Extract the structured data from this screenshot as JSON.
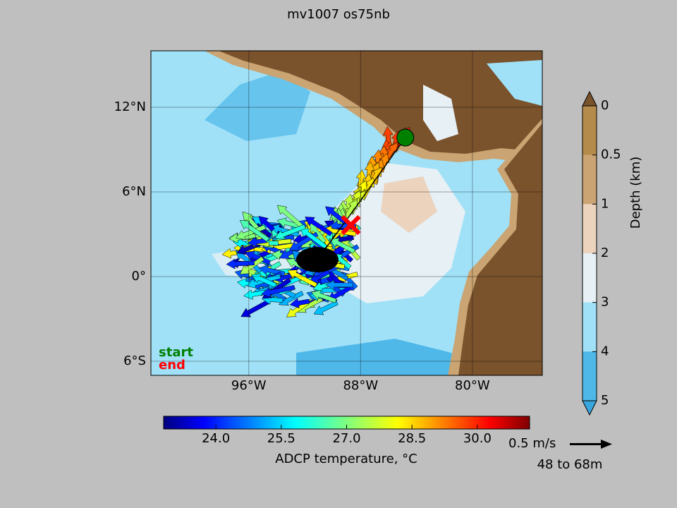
{
  "map": {
    "title": "mv1007 os75nb",
    "lon_range": [
      -103,
      -75
    ],
    "lat_range": [
      -7,
      16
    ],
    "lon_ticks": [
      {
        "value": -96,
        "label": "96°W"
      },
      {
        "value": -88,
        "label": "88°W"
      },
      {
        "value": -80,
        "label": "80°W"
      }
    ],
    "lat_ticks": [
      {
        "value": 12,
        "label": "12°N"
      },
      {
        "value": 6,
        "label": "6°N"
      },
      {
        "value": 0,
        "label": "0°"
      },
      {
        "value": -6,
        "label": "6°S"
      }
    ],
    "depth_colorbar": {
      "label": "Depth (km)",
      "ticks": [
        0,
        {
          "value": 0.5,
          "label": "0.5"
        },
        1,
        2,
        3,
        4,
        5
      ],
      "colors": [
        "#b58b4c",
        "#caa472",
        "#ecd3bd",
        "#e6f0f5",
        "#a0e1f8",
        "#4fb8e8"
      ],
      "over_color": "#7a522c",
      "under_color": "#3aa6de"
    },
    "temp_colorbar": {
      "label": "ADCP temperature, °C",
      "range": [
        22.8,
        31.2
      ],
      "ticks": [
        {
          "value": 24,
          "label": "24.0"
        },
        {
          "value": 25.5,
          "label": "25.5"
        },
        {
          "value": 27,
          "label": "27.0"
        },
        {
          "value": 28.5,
          "label": "28.5"
        },
        {
          "value": 30,
          "label": "30.0"
        }
      ]
    },
    "start": {
      "label": "start",
      "lon": -84.8,
      "lat": 9.85,
      "color": "#008000"
    },
    "end": {
      "label": "end",
      "lon": -88.7,
      "lat": 3.65,
      "color": "#ff0000"
    },
    "scale_label": "0.5 m/s",
    "depth_range_label": "48 to 68m"
  }
}
